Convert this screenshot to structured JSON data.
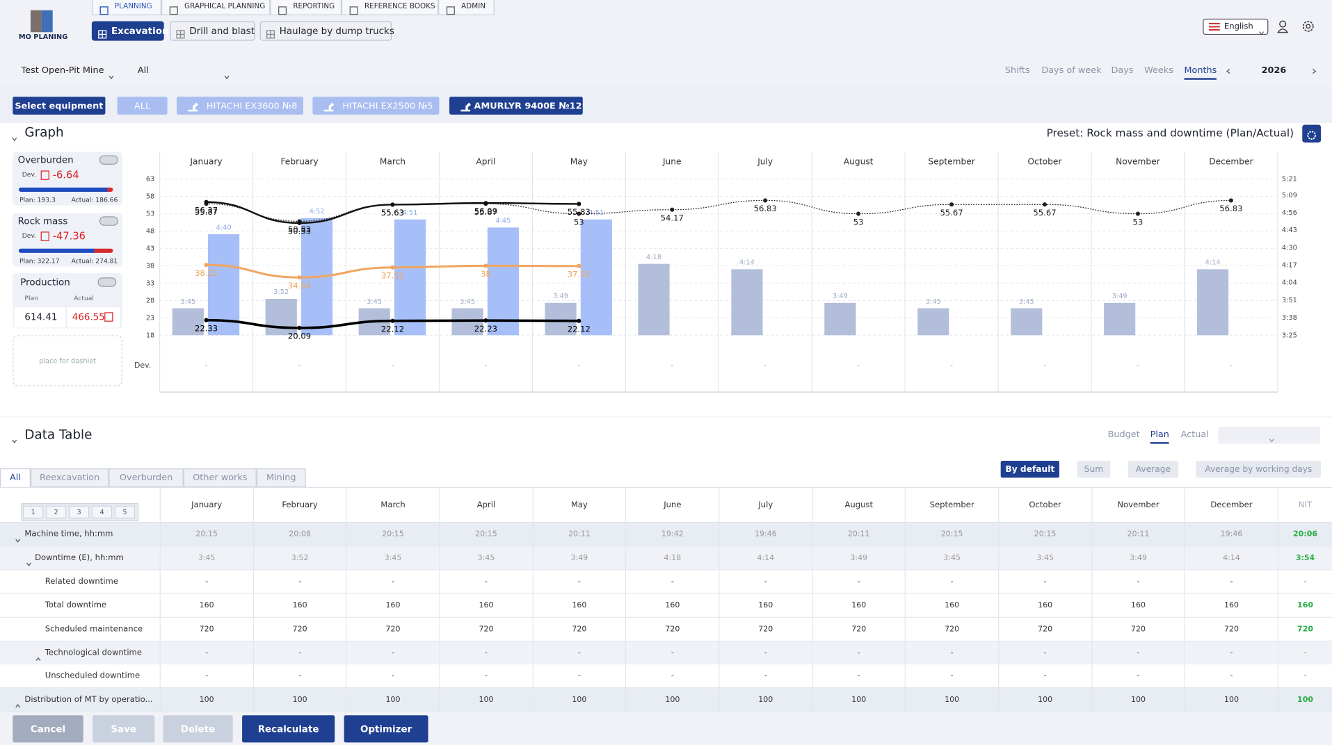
{
  "logo": "MO PLANING",
  "nav": [
    "PLANNING",
    "GRAPHICAL PLANNING",
    "REPORTING",
    "REFERENCE BOOKS",
    "ADMIN"
  ],
  "modules": [
    "Excavation",
    "Drill and blast",
    "Haulage by dump trucks"
  ],
  "language": "English",
  "filters": [
    "Test Open-Pit Mine",
    "All"
  ],
  "periods": [
    "Shifts",
    "Days of week",
    "Days",
    "Weeks",
    "Months"
  ],
  "year": "2026",
  "equipment": {
    "label": "Select equipment",
    "items": [
      "ALL",
      "HITACHI EX3600 №8",
      "HITACHI EX2500 №5",
      "AMURLYR 9400E №12"
    ]
  },
  "dashlets": [
    {
      "title": "Overburden",
      "dev_label": "Dev.",
      "dev": "-6.64",
      "plan": "Plan: 193.3",
      "actual": "Actual: 186.66"
    },
    {
      "title": "Rock mass",
      "dev_label": "Dev.",
      "dev": "-47.36",
      "plan": "Plan: 322.17",
      "actual": "Actual: 274.81"
    }
  ],
  "production": {
    "title": "Production",
    "plan_label": "Plan",
    "actual_label": "Actual",
    "plan": "614.41",
    "actual": "466.55"
  },
  "placeholder": "place for dashlet",
  "chart_data": {
    "type": "bar",
    "title": "Graph",
    "preset": "Preset: Rock mass and downtime (Plan/Actual)",
    "categories": [
      "January",
      "February",
      "March",
      "April",
      "May",
      "June",
      "July",
      "August",
      "September",
      "October",
      "November",
      "December"
    ],
    "ylim": [
      18,
      63
    ],
    "yticks": [
      18,
      23,
      28,
      33,
      38,
      43,
      48,
      53,
      58,
      63
    ],
    "y2lim": [
      205,
      321
    ],
    "y2ticks": [
      {
        "value": 205,
        "label": "3:25"
      },
      {
        "value": 218,
        "label": "3:38"
      },
      {
        "value": 231,
        "label": "3:51"
      },
      {
        "value": 244,
        "label": "4:04"
      },
      {
        "value": 257,
        "label": "4:17"
      },
      {
        "value": 270,
        "label": "4:30"
      },
      {
        "value": 283,
        "label": "4:43"
      },
      {
        "value": 296,
        "label": "4:56"
      },
      {
        "value": 309,
        "label": "5:09"
      },
      {
        "value": 321,
        "label": "5:21"
      }
    ],
    "grid": true,
    "series": [
      {
        "type": "bar",
        "axis": "y2",
        "color": "#b3bedb",
        "label_color": "#9ba8c6",
        "values": [
          225,
          232,
          225,
          225,
          229,
          258,
          254,
          229,
          225,
          225,
          229,
          254
        ],
        "value_labels": [
          "3:45",
          "3:52",
          "3:45",
          "3:45",
          "3:49",
          "4:18",
          "4:14",
          "3:49",
          "3:45",
          "3:45",
          "3:49",
          "4:14"
        ]
      },
      {
        "type": "bar",
        "axis": "y2",
        "color": "#a7bff8",
        "label_color": "#8eaaf0",
        "values": [
          280,
          292,
          291,
          285,
          291,
          null,
          null,
          null,
          null,
          null,
          null,
          null
        ],
        "value_labels": [
          "4:40",
          "4:52",
          "4:51",
          "4:45",
          "4:51",
          null,
          null,
          null,
          null,
          null,
          null,
          null
        ]
      },
      {
        "type": "line",
        "color": "#222222",
        "style": "dotted",
        "line_width": 1,
        "values": [
          55.87,
          50.83,
          55.63,
          55.87,
          53,
          54.17,
          56.83,
          53,
          55.67,
          55.67,
          53,
          56.83
        ]
      },
      {
        "type": "line",
        "color": "#111111",
        "style": "solid",
        "line_width": 2,
        "values": [
          56.37,
          50.33,
          55.63,
          56.09,
          55.83,
          null,
          null,
          null,
          null,
          null,
          null,
          null
        ]
      },
      {
        "type": "line",
        "color": "#f0a560",
        "style": "solid",
        "line_width": 2.5,
        "values": [
          38.25,
          34.64,
          37.52,
          38,
          37.92,
          null,
          null,
          null,
          null,
          null,
          null,
          null
        ]
      },
      {
        "type": "line",
        "color": "#000000",
        "style": "solid",
        "line_width": 3,
        "values": [
          22.33,
          20.09,
          22.12,
          22.23,
          22.12,
          null,
          null,
          null,
          null,
          null,
          null,
          null
        ]
      }
    ],
    "dev_label": "Dev.",
    "dev_values": [
      "-",
      "-",
      "-",
      "-",
      "-",
      "-",
      "-",
      "-",
      "-",
      "-",
      "-",
      "-"
    ]
  },
  "table": {
    "title": "Data Table",
    "modes": [
      "Budget",
      "Plan",
      "Actual"
    ],
    "tabs": [
      "All",
      "Reexcavation",
      "Overburden",
      "Other works",
      "Mining"
    ],
    "aggregations": [
      "By default",
      "Sum",
      "Average",
      "Average by working days"
    ],
    "levels": [
      "1",
      "2",
      "3",
      "4",
      "5"
    ],
    "columns": [
      "January",
      "February",
      "March",
      "April",
      "May",
      "June",
      "July",
      "August",
      "September",
      "October",
      "November",
      "December",
      "NIT"
    ],
    "rows": [
      {
        "label": "Machine time, hh:mm",
        "cells": [
          "20:15",
          "20:08",
          "20:15",
          "20:15",
          "20:11",
          "19:42",
          "19:46",
          "20:11",
          "20:15",
          "20:15",
          "20:11",
          "19:46",
          "20:06"
        ]
      },
      {
        "label": "Downtime (E), hh:mm",
        "cells": [
          "3:45",
          "3:52",
          "3:45",
          "3:45",
          "3:49",
          "4:18",
          "4:14",
          "3:49",
          "3:45",
          "3:45",
          "3:49",
          "4:14",
          "3:54"
        ]
      },
      {
        "label": "Related downtime",
        "cells": [
          "-",
          "-",
          "-",
          "-",
          "-",
          "-",
          "-",
          "-",
          "-",
          "-",
          "-",
          "-",
          "-"
        ]
      },
      {
        "label": "Total downtime",
        "cells": [
          "160",
          "160",
          "160",
          "160",
          "160",
          "160",
          "160",
          "160",
          "160",
          "160",
          "160",
          "160",
          "160"
        ]
      },
      {
        "label": "Scheduled maintenance",
        "cells": [
          "720",
          "720",
          "720",
          "720",
          "720",
          "720",
          "720",
          "720",
          "720",
          "720",
          "720",
          "720",
          "720"
        ]
      },
      {
        "label": "Technological downtime",
        "cells": [
          "-",
          "-",
          "-",
          "-",
          "-",
          "-",
          "-",
          "-",
          "-",
          "-",
          "-",
          "-",
          "-"
        ]
      },
      {
        "label": "Unscheduled downtime",
        "cells": [
          "-",
          "-",
          "-",
          "-",
          "-",
          "-",
          "-",
          "-",
          "-",
          "-",
          "-",
          "-",
          "-"
        ]
      },
      {
        "label": "Distribution of MT by operatio...",
        "cells": [
          "100",
          "100",
          "100",
          "100",
          "100",
          "100",
          "100",
          "100",
          "100",
          "100",
          "100",
          "100",
          "100"
        ]
      }
    ]
  },
  "actions": [
    "Cancel",
    "Save",
    "Delete",
    "Recalculate",
    "Optimizer"
  ]
}
